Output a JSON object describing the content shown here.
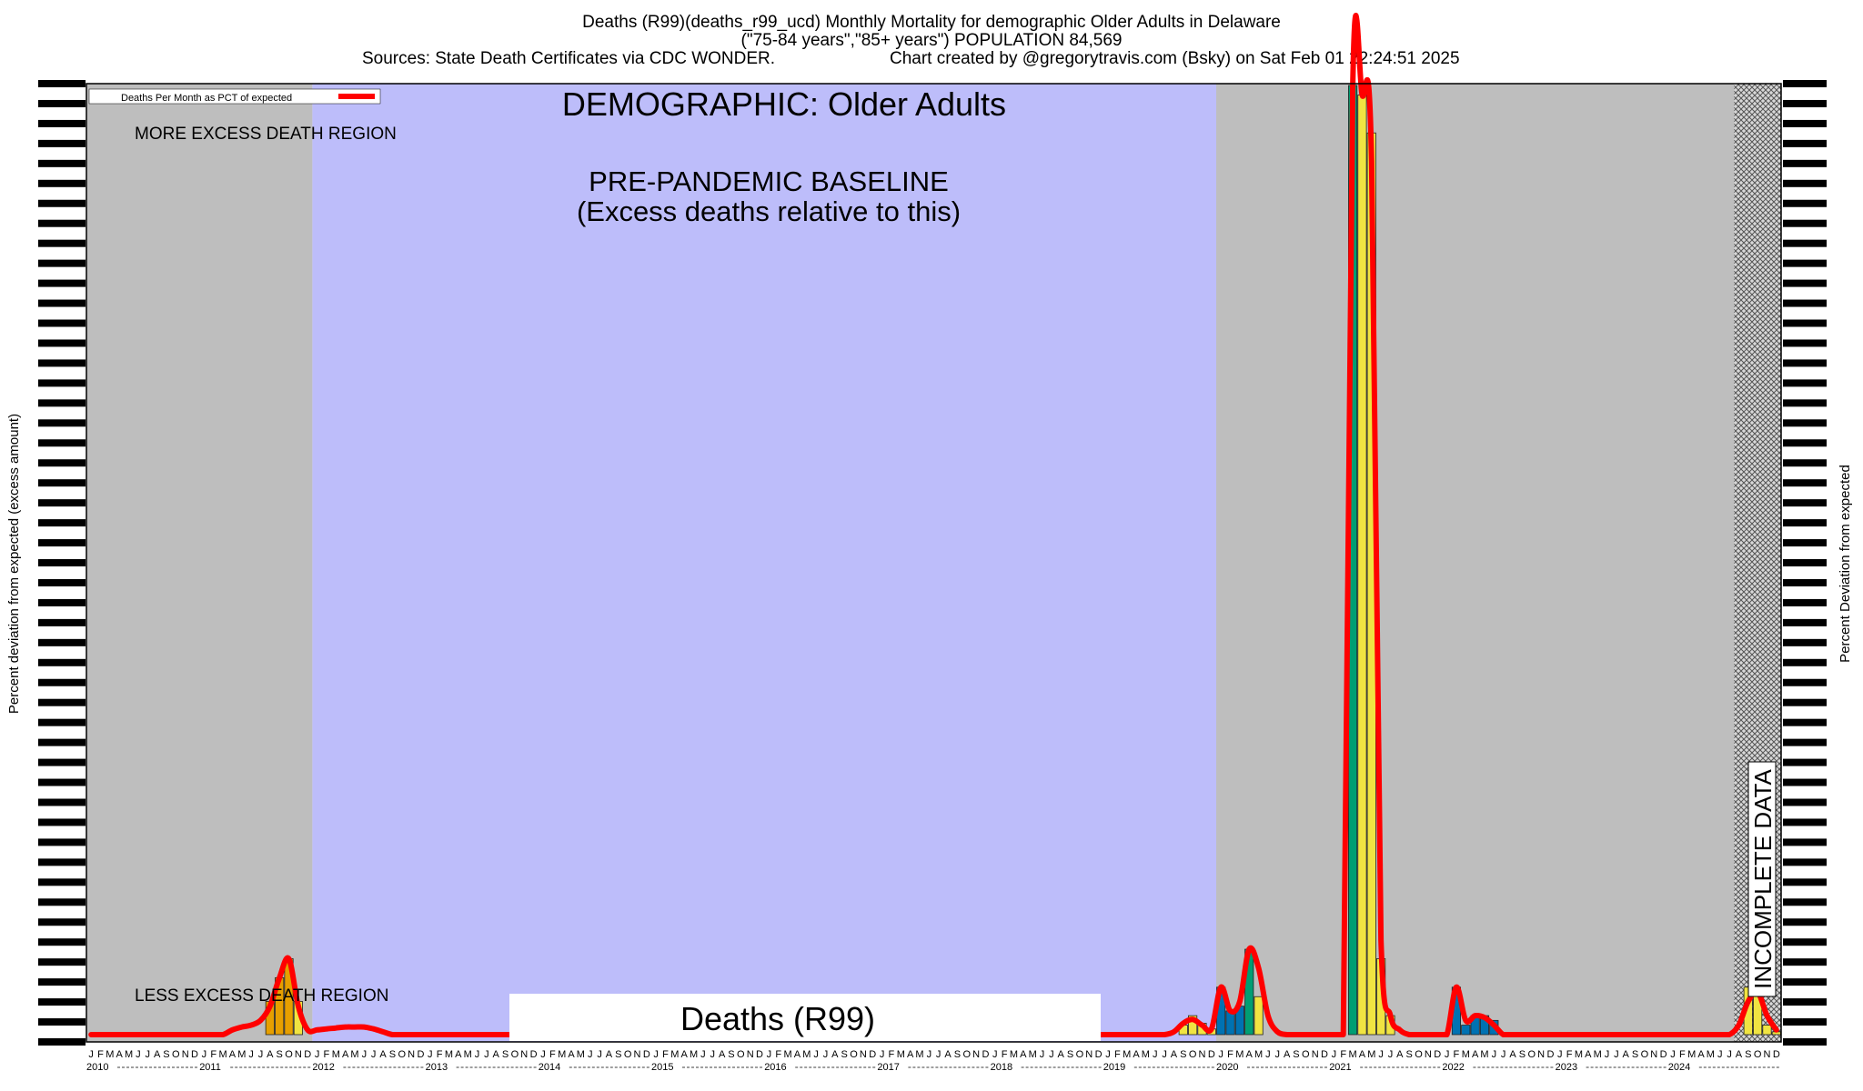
{
  "header": {
    "line1": "Deaths (R99)(deaths_r99_ucd) Monthly Mortality for demographic Older Adults in Delaware",
    "line2": "(\"75-84 years\",\"85+ years\") POPULATION 84,569",
    "line3_sources": "Sources: State Death Certificates via CDC WONDER.",
    "line3_credit": "Chart created by @gregorytravis.com (Bsky) on Sat Feb 01 22:24:51 2025"
  },
  "legend": {
    "label": "Deaths Per Month as PCT of expected",
    "color": "#ff0000"
  },
  "annotations": {
    "demographic": "DEMOGRAPHIC: Older Adults",
    "baseline_line1": "PRE-PANDEMIC BASELINE",
    "baseline_line2": "(Excess deaths relative to this)",
    "more_excess": "MORE EXCESS DEATH REGION",
    "less_excess": "LESS EXCESS DEATH REGION",
    "incomplete": "INCOMPLETE DATA",
    "cause_box": "Deaths (R99)"
  },
  "axes": {
    "ylabel_left": "Percent deviation from expected (excess amount)",
    "ylabel_right": "Percent Deviation from expected",
    "month_letters": [
      "J",
      "F",
      "M",
      "A",
      "M",
      "J",
      "J",
      "A",
      "S",
      "O",
      "N",
      "D"
    ]
  },
  "colors": {
    "outside_region": "#bebebe",
    "baseline_region": "#bdbdfa",
    "bar_yellow": "#f0e442",
    "bar_orange": "#e69f00",
    "bar_blue": "#0072b2",
    "bar_green": "#009e73",
    "line": "#ff0000"
  },
  "chart_data": {
    "type": "bar",
    "unit": "relative monthly deaths (y-axis tick labels not legible)",
    "x_start": "2010-01",
    "years": [
      "2010",
      "2011",
      "2012",
      "2013",
      "2014",
      "2015",
      "2016",
      "2017",
      "2018",
      "2019",
      "2020",
      "2021",
      "2022",
      "2023",
      "2024"
    ],
    "baseline_period": [
      "2012-01",
      "2019-12"
    ],
    "incomplete_from": "2024-08",
    "values": [
      0,
      0,
      0,
      0,
      0,
      0,
      0,
      0,
      0,
      0,
      0,
      0,
      0,
      0,
      0,
      0.3,
      0.7,
      0.8,
      1.5,
      3.5,
      6,
      8,
      3.5,
      0.3,
      0.5,
      0.6,
      0.7,
      0.8,
      0.8,
      0.8,
      0.7,
      0.4,
      0,
      0,
      0,
      0,
      0,
      0,
      0,
      0,
      0,
      0,
      0,
      0,
      0,
      0,
      0,
      0,
      0,
      0,
      0,
      0,
      0,
      0,
      0,
      0,
      0,
      0,
      0,
      0,
      0,
      0,
      0,
      0,
      0,
      0,
      0,
      0,
      0,
      0,
      0,
      0,
      0,
      0,
      0,
      0,
      0,
      0,
      0,
      0,
      0,
      0,
      0,
      0,
      0,
      0,
      0,
      0,
      0,
      0,
      0,
      0,
      0,
      0,
      0,
      0,
      0,
      0,
      0,
      0,
      0,
      0,
      0,
      0,
      0,
      0,
      0,
      0,
      0,
      0,
      0,
      0,
      0,
      0,
      0,
      0,
      1,
      2,
      1.2,
      0.6,
      5,
      2.5,
      3,
      9,
      4,
      2,
      0,
      0,
      0,
      0,
      0,
      0,
      0,
      0,
      100,
      99,
      95,
      8,
      2,
      0.5,
      0,
      0,
      0,
      0,
      0,
      5,
      1,
      2,
      2,
      1.5,
      0,
      0,
      0,
      0,
      0,
      0,
      0,
      0,
      0,
      0,
      0,
      0,
      0,
      0,
      0,
      0,
      0,
      0,
      0,
      0,
      0,
      0,
      0,
      0,
      0,
      0,
      5,
      4.5,
      1,
      0.3
    ],
    "bar_colors": [
      "",
      "",
      "",
      "",
      "",
      "",
      "",
      "",
      "",
      "",
      "",
      "",
      "",
      "",
      "",
      "",
      "",
      "",
      "",
      "orange",
      "orange",
      "orange",
      "yellow",
      "",
      "",
      "",
      "",
      "",
      "",
      "",
      "",
      "",
      "",
      "",
      "",
      "",
      "",
      "",
      "",
      "",
      "",
      "",
      "",
      "",
      "",
      "",
      "",
      "",
      "",
      "",
      "",
      "",
      "",
      "",
      "",
      "",
      "",
      "",
      "",
      "",
      "",
      "",
      "",
      "",
      "",
      "",
      "",
      "",
      "",
      "",
      "",
      "",
      "",
      "",
      "",
      "",
      "",
      "",
      "",
      "",
      "",
      "",
      "",
      "",
      "",
      "",
      "",
      "",
      "",
      "",
      "",
      "",
      "",
      "",
      "",
      "",
      "",
      "",
      "",
      "",
      "",
      "",
      "",
      "",
      "",
      "",
      "",
      "",
      "",
      "",
      "",
      "",
      "",
      "",
      "",
      "",
      "yellow",
      "yellow",
      "yellow",
      "yellow",
      "blue",
      "blue",
      "blue",
      "green",
      "yellow",
      "",
      "",
      "",
      "",
      "",
      "",
      "",
      "",
      "",
      "green",
      "yellow",
      "yellow",
      "yellow",
      "yellow",
      "",
      "",
      "",
      "",
      "",
      "",
      "blue",
      "blue",
      "blue",
      "blue",
      "blue",
      "",
      "",
      "",
      "",
      "",
      "",
      "",
      "",
      "",
      "",
      "",
      "",
      "",
      "",
      "",
      "",
      "",
      "",
      "",
      "",
      "",
      "",
      "",
      "",
      "",
      "",
      "yellow",
      "yellow",
      "yellow",
      "yellow"
    ],
    "line": [
      0,
      0,
      0,
      0,
      0,
      0,
      0,
      0,
      0,
      0,
      0,
      0,
      0,
      0,
      0,
      0.5,
      0.8,
      1,
      1.5,
      3,
      6,
      8,
      3,
      0.5,
      0.5,
      0.6,
      0.7,
      0.8,
      0.8,
      0.8,
      0.6,
      0.3,
      0,
      0,
      0,
      0,
      0,
      0,
      0,
      0,
      0,
      0,
      0,
      0,
      0,
      0,
      0,
      0,
      0.8,
      0,
      0,
      0,
      0,
      0,
      0,
      0,
      0,
      0,
      0,
      0,
      0,
      0,
      0,
      0,
      0,
      0,
      0,
      0,
      0,
      0,
      0,
      0,
      0,
      0,
      0,
      0,
      0,
      0,
      0,
      0,
      0,
      0,
      0,
      0,
      0,
      0,
      0,
      0,
      0,
      0,
      0,
      0,
      0,
      0,
      0,
      0,
      0,
      0,
      0,
      0,
      0,
      0,
      0,
      0,
      0,
      0,
      0,
      0,
      0,
      0,
      0,
      0,
      0,
      0,
      0,
      0.3,
      1.2,
      1.6,
      1,
      0.6,
      5,
      2.5,
      3.5,
      9,
      7,
      2,
      0.3,
      0,
      0,
      0,
      0,
      0,
      0,
      0,
      100,
      99,
      92,
      10,
      2,
      0.5,
      0,
      0,
      0,
      0,
      0,
      5,
      1.5,
      2,
      1.8,
      1,
      0,
      0,
      0,
      0,
      0,
      0,
      0,
      0,
      0,
      0,
      0,
      0,
      0,
      0,
      0,
      0,
      0,
      0,
      0,
      0,
      0,
      0,
      0,
      0,
      0,
      1,
      3.5,
      4.5,
      2,
      0.5
    ]
  }
}
